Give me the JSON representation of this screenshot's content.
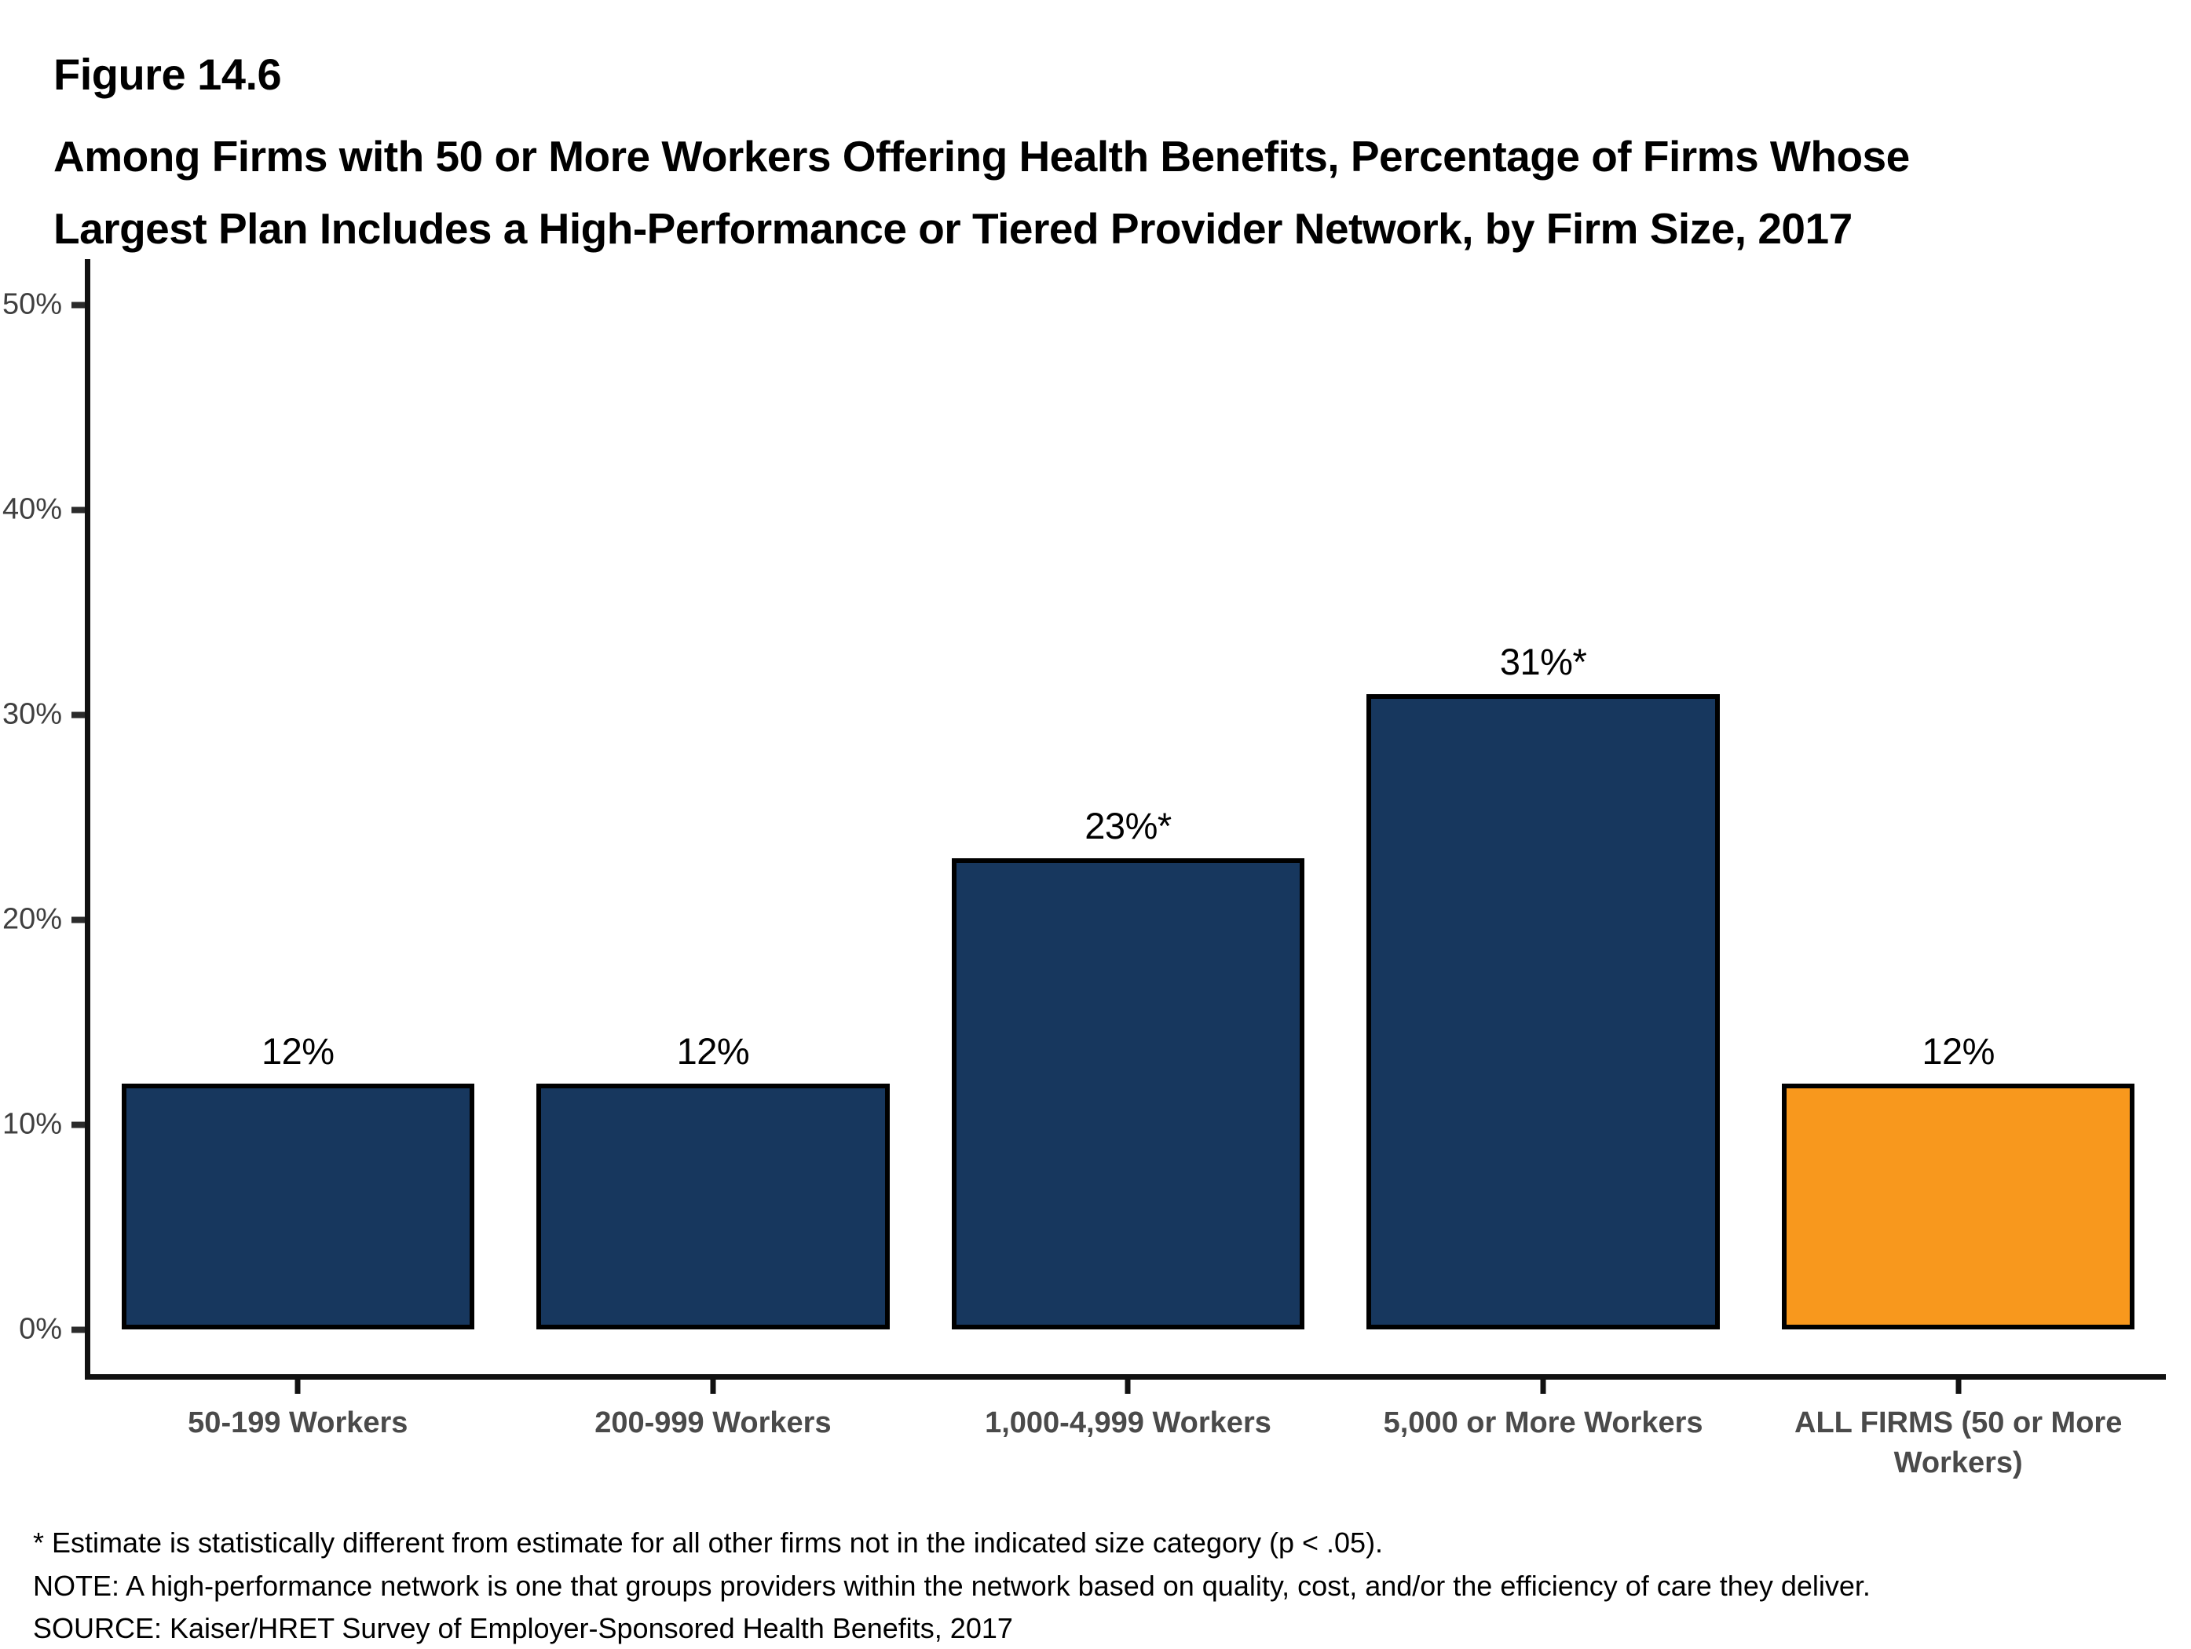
{
  "figure": {
    "label": "Figure 14.6",
    "title": "Among Firms with 50 or More Workers Offering Health Benefits, Percentage of Firms Whose Largest Plan Includes a High-Performance or Tiered Provider Network, by Firm Size, 2017"
  },
  "chart_data": {
    "type": "bar",
    "title": "Among Firms with 50 or More Workers Offering Health Benefits, Percentage of Firms Whose Largest Plan Includes a High-Performance or Tiered Provider Network, by Firm Size, 2017",
    "categories": [
      "50-199 Workers",
      "200-999 Workers",
      "1,000-4,999 Workers",
      "5,000 or More Workers",
      "ALL FIRMS (50 or More Workers)"
    ],
    "values": [
      12,
      12,
      23,
      31,
      12
    ],
    "value_labels": [
      "12%",
      "12%",
      "23%*",
      "31%*",
      "12%"
    ],
    "bar_colors": [
      "#17375E",
      "#17375E",
      "#17375E",
      "#17375E",
      "#F8981D"
    ],
    "xlabel": "",
    "ylabel": "",
    "ylim": [
      0,
      50
    ],
    "yticks": [
      {
        "value": 0,
        "label": "0%"
      },
      {
        "value": 10,
        "label": "10%"
      },
      {
        "value": 20,
        "label": "20%"
      },
      {
        "value": 30,
        "label": "30%"
      },
      {
        "value": 40,
        "label": "40%"
      },
      {
        "value": 50,
        "label": "50%"
      }
    ],
    "grid": false,
    "legend": null
  },
  "footnotes": [
    "* Estimate is statistically different from estimate for all other firms not in the indicated size category (p < .05).",
    "NOTE: A high-performance network is one that groups providers within the network based on quality, cost, and/or the efficiency of care they deliver.",
    "SOURCE: Kaiser/HRET Survey of Employer-Sponsored Health Benefits, 2017"
  ]
}
